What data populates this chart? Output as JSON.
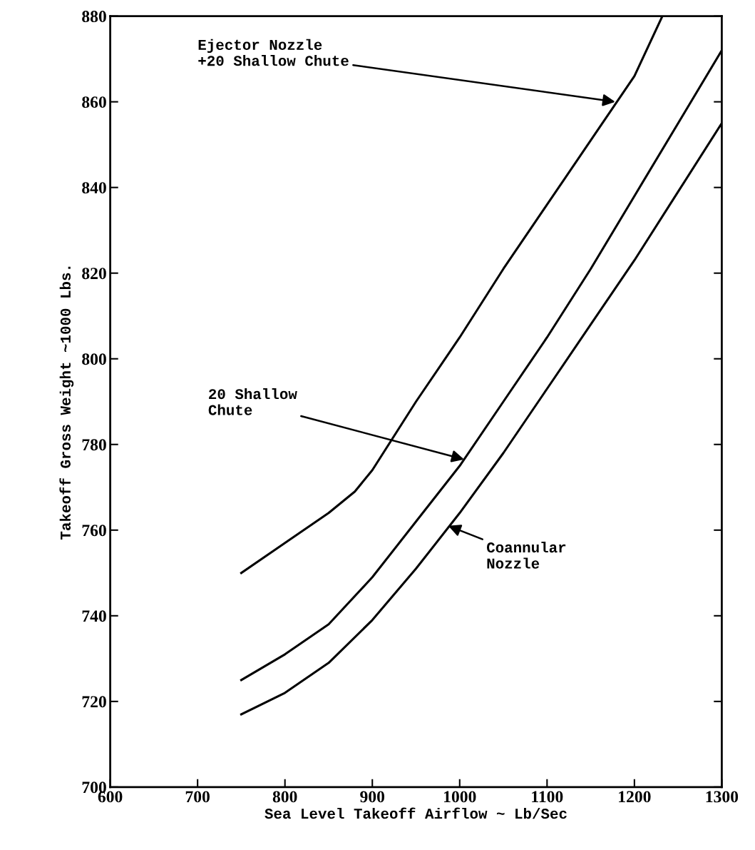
{
  "chart_data": {
    "type": "line",
    "xlabel": "Sea Level Takeoff Airflow ~ Lb/Sec",
    "ylabel": "Takeoff Gross Weight ~1000 Lbs.",
    "xlim": [
      600,
      1300
    ],
    "xticks": [
      600,
      700,
      800,
      900,
      1000,
      1100,
      1200,
      1300
    ],
    "ylim": [
      700,
      880
    ],
    "yticks": [
      700,
      720,
      740,
      760,
      780,
      800,
      820,
      840,
      860,
      880
    ],
    "grid": false,
    "legend": false,
    "marker": "none",
    "line_style": "solid",
    "series": [
      {
        "color": "#000000",
        "x": [
          750,
          800,
          850,
          880,
          900,
          950,
          1000,
          1050,
          1100,
          1150,
          1200,
          1232
        ],
        "values": [
          750,
          757,
          764,
          769,
          774,
          790,
          805,
          821,
          836,
          851,
          866,
          880
        ]
      },
      {
        "color": "#000000",
        "x": [
          750,
          800,
          850,
          900,
          950,
          1000,
          1050,
          1100,
          1150,
          1200,
          1250,
          1300
        ],
        "values": [
          725,
          731,
          738,
          749,
          762,
          775,
          790,
          805,
          821,
          838,
          855,
          872
        ]
      },
      {
        "color": "#000000",
        "x": [
          750,
          800,
          850,
          900,
          950,
          1000,
          1050,
          1100,
          1150,
          1200,
          1250,
          1300
        ],
        "values": [
          717,
          722,
          729,
          739,
          751,
          764,
          778,
          793,
          808,
          823,
          839,
          855
        ]
      }
    ],
    "annotations": [
      {
        "text": "Ejector Nozzle\n+20 Shallow Chute",
        "x": 1178,
        "y": 860
      },
      {
        "text": "20 Shallow\nChute",
        "x": 1005,
        "y": 776.5
      },
      {
        "text": "Coannular\nNozzle",
        "x": 987,
        "y": 761
      }
    ]
  }
}
